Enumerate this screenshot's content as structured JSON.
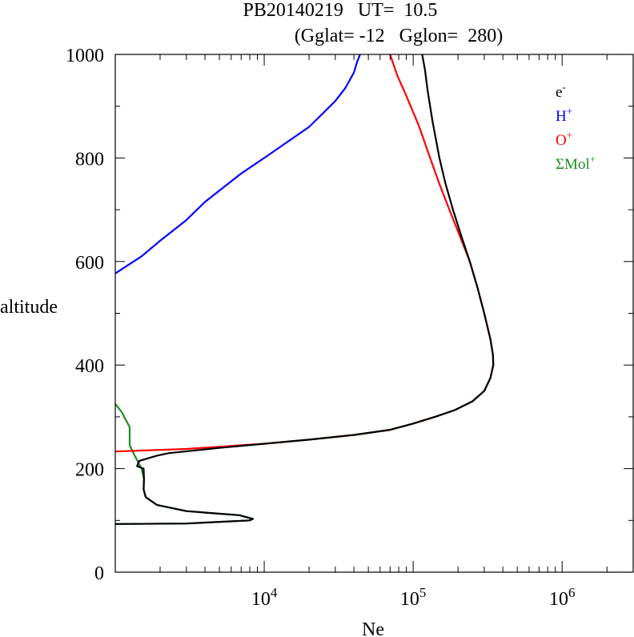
{
  "chart_data": {
    "type": "line",
    "title_line1": "PB20140219   UT=  10.5",
    "title_line2": "(Gglat= -12   Gglon=  280)",
    "xlabel": "Ne",
    "ylabel": "altitude",
    "x_scale": "log",
    "xlim": [
      1000,
      3000000
    ],
    "ylim": [
      0,
      1000
    ],
    "y_ticks": [
      0,
      200,
      400,
      600,
      800,
      1000
    ],
    "y_tick_labels": [
      "0",
      "200",
      "400",
      "600",
      "800",
      "1000"
    ],
    "x_ticks": [
      10000,
      100000,
      1000000
    ],
    "x_tick_labels": [
      {
        "base": "10",
        "exp": "4"
      },
      {
        "base": "10",
        "exp": "5"
      },
      {
        "base": "10",
        "exp": "6"
      }
    ],
    "grid": false,
    "legend_position": "top-right",
    "series": [
      {
        "name": "e",
        "name_sup": "-",
        "color": "#000000",
        "points": [
          [
            1000,
            93
          ],
          [
            3000,
            94
          ],
          [
            8000,
            100
          ],
          [
            8400,
            103
          ],
          [
            6800,
            110
          ],
          [
            3000,
            118
          ],
          [
            1900,
            130
          ],
          [
            1600,
            145
          ],
          [
            1550,
            160
          ],
          [
            1560,
            180
          ],
          [
            1550,
            200
          ],
          [
            1400,
            205
          ],
          [
            1450,
            215
          ],
          [
            1900,
            225
          ],
          [
            2300,
            230
          ],
          [
            5000,
            240
          ],
          [
            10000,
            248
          ],
          [
            20000,
            256
          ],
          [
            40000,
            265
          ],
          [
            70000,
            275
          ],
          [
            100000,
            287
          ],
          [
            140000,
            300
          ],
          [
            190000,
            313
          ],
          [
            250000,
            330
          ],
          [
            300000,
            350
          ],
          [
            330000,
            375
          ],
          [
            345000,
            400
          ],
          [
            343000,
            420
          ],
          [
            330000,
            450
          ],
          [
            300000,
            500
          ],
          [
            270000,
            550
          ],
          [
            240000,
            600
          ],
          [
            210000,
            650
          ],
          [
            185000,
            700
          ],
          [
            165000,
            750
          ],
          [
            150000,
            800
          ],
          [
            135000,
            870
          ],
          [
            125000,
            930
          ],
          [
            120000,
            970
          ],
          [
            115000,
            1000
          ]
        ]
      },
      {
        "name": "H",
        "name_sup": "+",
        "color": "#0000ff",
        "points": [
          [
            1000,
            577
          ],
          [
            1500,
            610
          ],
          [
            2000,
            640
          ],
          [
            3000,
            680
          ],
          [
            4000,
            715
          ],
          [
            7000,
            770
          ],
          [
            10000,
            800
          ],
          [
            20000,
            860
          ],
          [
            30000,
            910
          ],
          [
            35000,
            935
          ],
          [
            40000,
            965
          ],
          [
            42000,
            985
          ],
          [
            44000,
            1000
          ]
        ]
      },
      {
        "name": "O",
        "name_sup": "+",
        "color": "#ff0000",
        "points": [
          [
            1000,
            233
          ],
          [
            3000,
            238
          ],
          [
            10000,
            248
          ],
          [
            20000,
            256
          ],
          [
            40000,
            265
          ],
          [
            70000,
            275
          ],
          [
            100000,
            287
          ],
          [
            140000,
            300
          ],
          [
            190000,
            313
          ],
          [
            250000,
            330
          ],
          [
            300000,
            350
          ],
          [
            330000,
            375
          ],
          [
            345000,
            400
          ],
          [
            343000,
            420
          ],
          [
            330000,
            450
          ],
          [
            300000,
            500
          ],
          [
            270000,
            550
          ],
          [
            240000,
            600
          ],
          [
            205000,
            650
          ],
          [
            175000,
            700
          ],
          [
            150000,
            750
          ],
          [
            130000,
            800
          ],
          [
            110000,
            860
          ],
          [
            90000,
            920
          ],
          [
            78000,
            960
          ],
          [
            70000,
            1000
          ]
        ]
      },
      {
        "name": "ΣMol",
        "name_sup": "+",
        "color": "#228b22",
        "points": [
          [
            1000,
            93
          ],
          [
            3000,
            94
          ],
          [
            8000,
            100
          ],
          [
            8400,
            103
          ],
          [
            6800,
            110
          ],
          [
            3000,
            118
          ],
          [
            1900,
            130
          ],
          [
            1600,
            145
          ],
          [
            1550,
            160
          ],
          [
            1560,
            180
          ],
          [
            1500,
            200
          ],
          [
            1350,
            225
          ],
          [
            1250,
            245
          ],
          [
            1250,
            280
          ],
          [
            1100,
            310
          ],
          [
            1000,
            325
          ]
        ]
      }
    ]
  }
}
